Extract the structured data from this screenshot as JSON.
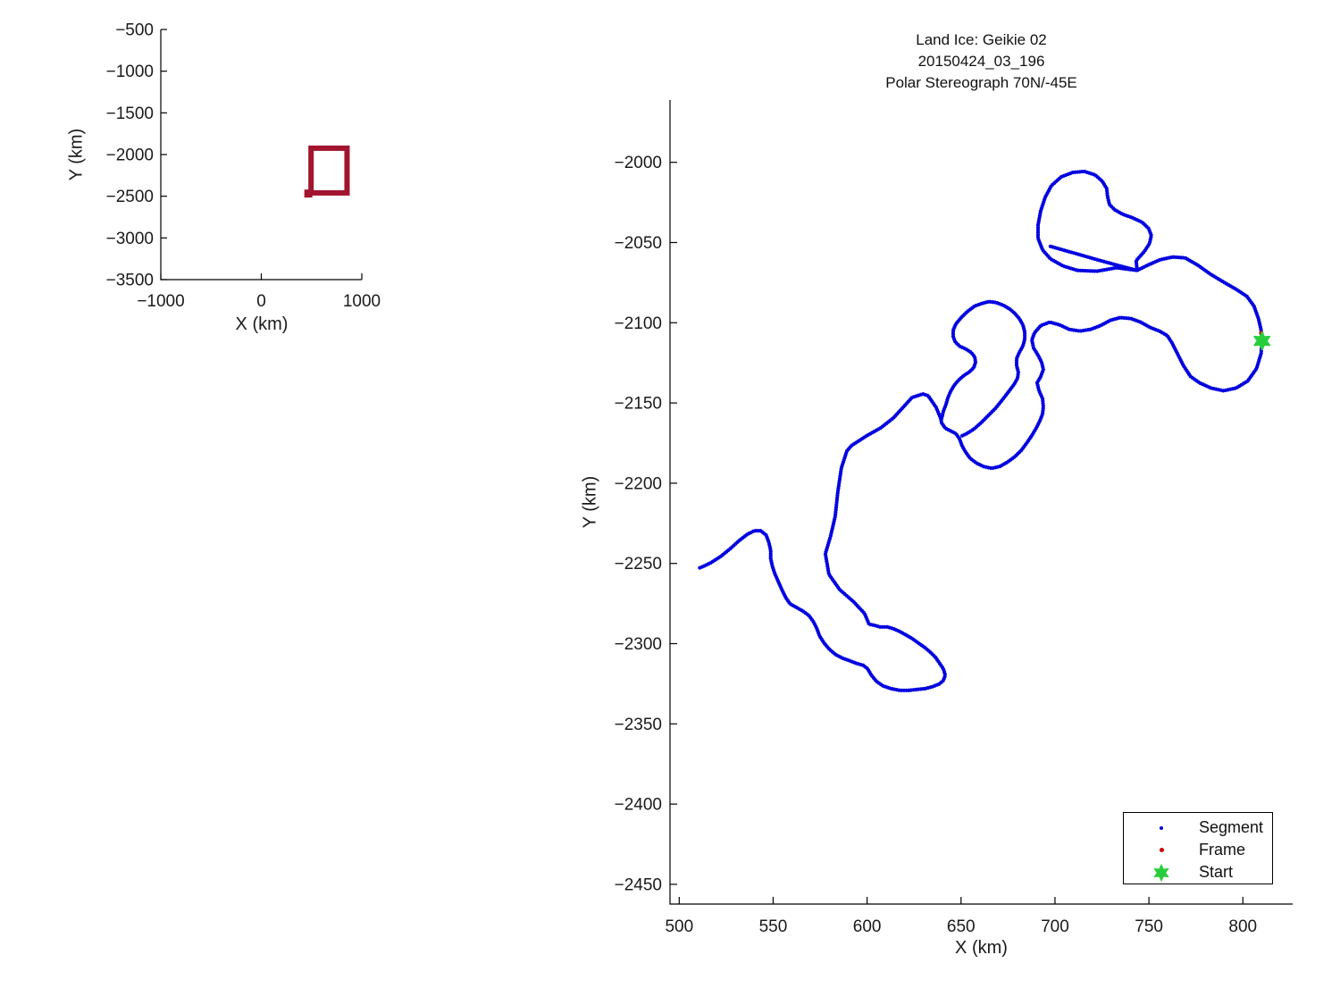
{
  "figure": {
    "background": "#ffffff",
    "title_lines": [
      "Land Ice: Geikie 02",
      "20150424_03_196",
      "Polar Stereograph 70N/-45E"
    ]
  },
  "chart_data": [
    {
      "id": "overview-locator",
      "type": "line",
      "title": "",
      "xlabel": "X (km)",
      "ylabel": "Y (km)",
      "xlim": [
        -1000,
        1000
      ],
      "ylim": [
        -3500,
        -500
      ],
      "xticks": [
        -1000,
        0,
        1000
      ],
      "yticks": [
        -500,
        -1000,
        -1500,
        -2000,
        -2500,
        -3000,
        -3500
      ],
      "grid": false,
      "legend_position": "none",
      "series": [
        {
          "name": "flight-footprint-outline",
          "kind": "rect",
          "color": "#A2142F",
          "stroke_px": 6,
          "rect_x": [
            495,
            853
          ],
          "rect_y": [
            -2460,
            -1924
          ]
        },
        {
          "name": "flight-footprint-notch",
          "kind": "filled-rect",
          "color": "#A2142F",
          "rect_x": [
            428,
            508
          ],
          "rect_y": [
            -2516,
            -2420
          ]
        }
      ]
    },
    {
      "id": "trajectory",
      "type": "scatter",
      "title_lines": [
        "Land Ice: Geikie 02",
        "20150424_03_196",
        "Polar Stereograph 70N/-45E"
      ],
      "xlabel": "X (km)",
      "ylabel": "Y (km)",
      "xlim": [
        495.1,
        826.5
      ],
      "ylim": [
        -2462.3,
        -1961.2
      ],
      "xticks": [
        500,
        550,
        600,
        650,
        700,
        750,
        800
      ],
      "yticks": [
        -2000,
        -2050,
        -2100,
        -2150,
        -2200,
        -2250,
        -2300,
        -2350,
        -2400,
        -2450
      ],
      "grid": false,
      "colors": {
        "segment": "#0000E0",
        "frame": "#D40000",
        "start": "#28CD3C"
      },
      "legend": {
        "position": "southeast",
        "entries": [
          "Segment",
          "Frame",
          "Start"
        ]
      },
      "series": [
        {
          "name": "Segment",
          "kind": "path",
          "color": "#0000E0",
          "points": [
            [
              697.6,
              -2052.4
            ],
            [
              709.0,
              -2056.2
            ],
            [
              720.9,
              -2060.2
            ],
            [
              732.5,
              -2063.9
            ],
            [
              743.7,
              -2067.4
            ],
            [
              732.8,
              -2065.7
            ],
            [
              722.3,
              -2067.9
            ],
            [
              711.9,
              -2067.4
            ],
            [
              704.3,
              -2064.6
            ],
            [
              697.6,
              -2060.2
            ],
            [
              693.4,
              -2054.6
            ],
            [
              691.0,
              -2047.4
            ],
            [
              691.0,
              -2039.1
            ],
            [
              692.4,
              -2030.2
            ],
            [
              694.8,
              -2021.8
            ],
            [
              698.1,
              -2014.6
            ],
            [
              703.3,
              -2009.1
            ],
            [
              709.5,
              -2006.3
            ],
            [
              715.7,
              -2005.7
            ],
            [
              721.4,
              -2007.9
            ],
            [
              725.2,
              -2011.8
            ],
            [
              727.5,
              -2016.3
            ],
            [
              728.0,
              -2021.3
            ],
            [
              729.0,
              -2026.3
            ],
            [
              731.8,
              -2029.6
            ],
            [
              736.1,
              -2032.4
            ],
            [
              741.3,
              -2034.6
            ],
            [
              746.5,
              -2037.4
            ],
            [
              749.9,
              -2041.3
            ],
            [
              751.3,
              -2045.7
            ],
            [
              750.3,
              -2050.7
            ],
            [
              747.5,
              -2055.7
            ],
            [
              743.2,
              -2061.3
            ],
            [
              743.7,
              -2067.4
            ],
            [
              749.4,
              -2064.1
            ],
            [
              756.0,
              -2060.7
            ],
            [
              762.7,
              -2059.0
            ],
            [
              769.3,
              -2059.6
            ],
            [
              776.0,
              -2064.1
            ],
            [
              782.6,
              -2069.6
            ],
            [
              789.7,
              -2074.6
            ],
            [
              796.4,
              -2079.1
            ],
            [
              802.1,
              -2083.5
            ],
            [
              805.9,
              -2089.6
            ],
            [
              808.3,
              -2097.4
            ],
            [
              809.7,
              -2104.6
            ],
            [
              810.2,
              -2111.3
            ],
            [
              809.7,
              -2119.1
            ],
            [
              807.3,
              -2128.5
            ],
            [
              802.6,
              -2136.3
            ],
            [
              796.4,
              -2140.7
            ],
            [
              789.7,
              -2142.4
            ],
            [
              783.1,
              -2140.7
            ],
            [
              776.9,
              -2137.4
            ],
            [
              772.2,
              -2133.5
            ],
            [
              768.4,
              -2126.8
            ],
            [
              765.1,
              -2119.1
            ],
            [
              762.2,
              -2112.4
            ],
            [
              759.8,
              -2108.0
            ],
            [
              755.6,
              -2105.2
            ],
            [
              750.8,
              -2103.0
            ],
            [
              745.6,
              -2099.6
            ],
            [
              740.4,
              -2097.4
            ],
            [
              734.7,
              -2096.8
            ],
            [
              729.4,
              -2098.5
            ],
            [
              724.2,
              -2101.8
            ],
            [
              719.0,
              -2104.1
            ],
            [
              713.3,
              -2105.2
            ],
            [
              707.6,
              -2104.1
            ],
            [
              702.4,
              -2101.3
            ],
            [
              697.2,
              -2099.6
            ],
            [
              692.4,
              -2101.8
            ],
            [
              689.1,
              -2106.3
            ],
            [
              687.7,
              -2110.7
            ],
            [
              688.6,
              -2115.7
            ],
            [
              691.0,
              -2120.2
            ],
            [
              692.9,
              -2124.6
            ],
            [
              693.8,
              -2129.1
            ],
            [
              692.4,
              -2133.5
            ],
            [
              690.5,
              -2137.4
            ],
            [
              691.5,
              -2142.4
            ],
            [
              693.4,
              -2147.4
            ],
            [
              693.8,
              -2152.4
            ],
            [
              693.4,
              -2156.8
            ],
            [
              691.9,
              -2161.3
            ],
            [
              690.0,
              -2165.7
            ],
            [
              687.7,
              -2170.2
            ],
            [
              684.8,
              -2175.2
            ],
            [
              682.0,
              -2179.6
            ],
            [
              678.6,
              -2183.5
            ],
            [
              674.8,
              -2186.8
            ],
            [
              670.6,
              -2189.6
            ],
            [
              666.3,
              -2190.7
            ],
            [
              662.0,
              -2189.6
            ],
            [
              658.2,
              -2187.4
            ],
            [
              654.9,
              -2184.6
            ],
            [
              652.5,
              -2180.7
            ],
            [
              650.6,
              -2176.8
            ],
            [
              649.2,
              -2172.4
            ],
            [
              647.3,
              -2169.1
            ],
            [
              644.4,
              -2167.4
            ],
            [
              641.6,
              -2165.7
            ],
            [
              639.7,
              -2162.4
            ],
            [
              639.1,
              -2159.4
            ],
            [
              636.7,
              -2152.7
            ],
            [
              632.5,
              -2145.5
            ],
            [
              629.6,
              -2144.4
            ],
            [
              623.9,
              -2146.6
            ],
            [
              619.2,
              -2152.7
            ],
            [
              613.9,
              -2159.4
            ],
            [
              607.3,
              -2165.5
            ],
            [
              599.7,
              -2170.5
            ],
            [
              591.6,
              -2176.6
            ],
            [
              589.2,
              -2180.0
            ],
            [
              586.3,
              -2190.6
            ],
            [
              584.4,
              -2205.6
            ],
            [
              583.0,
              -2220.7
            ],
            [
              580.6,
              -2232.9
            ],
            [
              577.8,
              -2244.0
            ],
            [
              579.7,
              -2256.8
            ],
            [
              585.4,
              -2266.3
            ],
            [
              593.0,
              -2274.1
            ],
            [
              598.7,
              -2281.3
            ],
            [
              601.1,
              -2288.0
            ],
            [
              603.6,
              -2288.5
            ],
            [
              606.9,
              -2289.6
            ],
            [
              610.7,
              -2289.6
            ],
            [
              614.0,
              -2290.7
            ],
            [
              617.4,
              -2292.4
            ],
            [
              620.7,
              -2294.6
            ],
            [
              624.0,
              -2296.8
            ],
            [
              627.3,
              -2299.6
            ],
            [
              630.7,
              -2302.4
            ],
            [
              633.5,
              -2305.2
            ],
            [
              636.4,
              -2308.5
            ],
            [
              638.7,
              -2312.4
            ],
            [
              640.6,
              -2315.7
            ],
            [
              641.6,
              -2319.6
            ],
            [
              640.6,
              -2323.0
            ],
            [
              638.3,
              -2325.2
            ],
            [
              634.9,
              -2326.8
            ],
            [
              631.1,
              -2328.0
            ],
            [
              626.9,
              -2328.5
            ],
            [
              622.1,
              -2329.1
            ],
            [
              617.4,
              -2329.1
            ],
            [
              612.6,
              -2328.0
            ],
            [
              608.4,
              -2326.3
            ],
            [
              605.0,
              -2323.5
            ],
            [
              602.2,
              -2319.6
            ],
            [
              600.3,
              -2315.7
            ],
            [
              597.9,
              -2313.5
            ],
            [
              594.6,
              -2312.4
            ],
            [
              590.8,
              -2310.7
            ],
            [
              587.0,
              -2309.1
            ],
            [
              583.2,
              -2306.8
            ],
            [
              579.9,
              -2303.5
            ],
            [
              577.1,
              -2299.6
            ],
            [
              574.7,
              -2295.2
            ],
            [
              573.3,
              -2290.7
            ],
            [
              571.4,
              -2286.3
            ],
            [
              569.0,
              -2282.4
            ],
            [
              565.7,
              -2279.6
            ],
            [
              562.4,
              -2277.4
            ],
            [
              559.0,
              -2275.2
            ],
            [
              556.7,
              -2271.3
            ],
            [
              554.8,
              -2266.8
            ],
            [
              552.9,
              -2261.8
            ],
            [
              551.0,
              -2256.8
            ],
            [
              549.6,
              -2251.8
            ],
            [
              548.7,
              -2246.8
            ],
            [
              548.7,
              -2241.8
            ],
            [
              547.7,
              -2236.8
            ],
            [
              546.3,
              -2232.4
            ],
            [
              543.4,
              -2229.6
            ],
            [
              540.1,
              -2229.6
            ],
            [
              536.3,
              -2231.8
            ],
            [
              532.0,
              -2235.7
            ],
            [
              527.3,
              -2240.7
            ],
            [
              522.0,
              -2245.7
            ],
            [
              516.8,
              -2249.6
            ],
            [
              513.0,
              -2251.8
            ],
            [
              510.6,
              -2252.9
            ]
          ]
        },
        {
          "name": "Segment-inner-loop",
          "kind": "path",
          "color": "#0000E0",
          "points": [
            [
              639.7,
              -2159.6
            ],
            [
              640.6,
              -2155.2
            ],
            [
              642.0,
              -2150.7
            ],
            [
              643.0,
              -2146.8
            ],
            [
              644.4,
              -2142.9
            ],
            [
              646.3,
              -2139.1
            ],
            [
              648.7,
              -2135.7
            ],
            [
              651.5,
              -2132.9
            ],
            [
              654.4,
              -2130.7
            ],
            [
              656.8,
              -2128.0
            ],
            [
              657.7,
              -2124.6
            ],
            [
              657.3,
              -2121.3
            ],
            [
              655.4,
              -2118.5
            ],
            [
              652.5,
              -2116.3
            ],
            [
              649.2,
              -2114.6
            ],
            [
              646.8,
              -2111.8
            ],
            [
              645.8,
              -2108.5
            ],
            [
              645.8,
              -2104.6
            ],
            [
              647.3,
              -2100.7
            ],
            [
              650.1,
              -2096.8
            ],
            [
              653.4,
              -2093.0
            ],
            [
              657.3,
              -2089.6
            ],
            [
              661.1,
              -2088.0
            ],
            [
              664.9,
              -2086.8
            ],
            [
              668.7,
              -2087.4
            ],
            [
              672.5,
              -2089.1
            ],
            [
              675.8,
              -2091.3
            ],
            [
              678.6,
              -2094.1
            ],
            [
              681.0,
              -2097.4
            ],
            [
              682.9,
              -2101.3
            ],
            [
              683.9,
              -2105.7
            ],
            [
              683.9,
              -2110.2
            ],
            [
              682.9,
              -2114.6
            ],
            [
              681.0,
              -2118.5
            ],
            [
              679.6,
              -2122.4
            ],
            [
              679.6,
              -2126.8
            ],
            [
              680.5,
              -2130.7
            ],
            [
              680.1,
              -2134.6
            ],
            [
              678.2,
              -2138.5
            ],
            [
              675.3,
              -2143.0
            ],
            [
              672.0,
              -2148.0
            ],
            [
              668.2,
              -2153.5
            ],
            [
              664.4,
              -2157.9
            ],
            [
              660.6,
              -2162.4
            ],
            [
              656.8,
              -2166.3
            ],
            [
              653.0,
              -2169.1
            ],
            [
              650.1,
              -2170.7
            ]
          ]
        },
        {
          "name": "Frame",
          "kind": "dot",
          "color": "#D40000",
          "radius_px": 2.5,
          "points": [
            [
              809.8,
              -2106.5
            ]
          ]
        },
        {
          "name": "Start",
          "kind": "hexagram",
          "color": "#28CD3C",
          "radius_px": 10,
          "points": [
            [
              810.2,
              -2111.3
            ]
          ]
        }
      ]
    }
  ]
}
